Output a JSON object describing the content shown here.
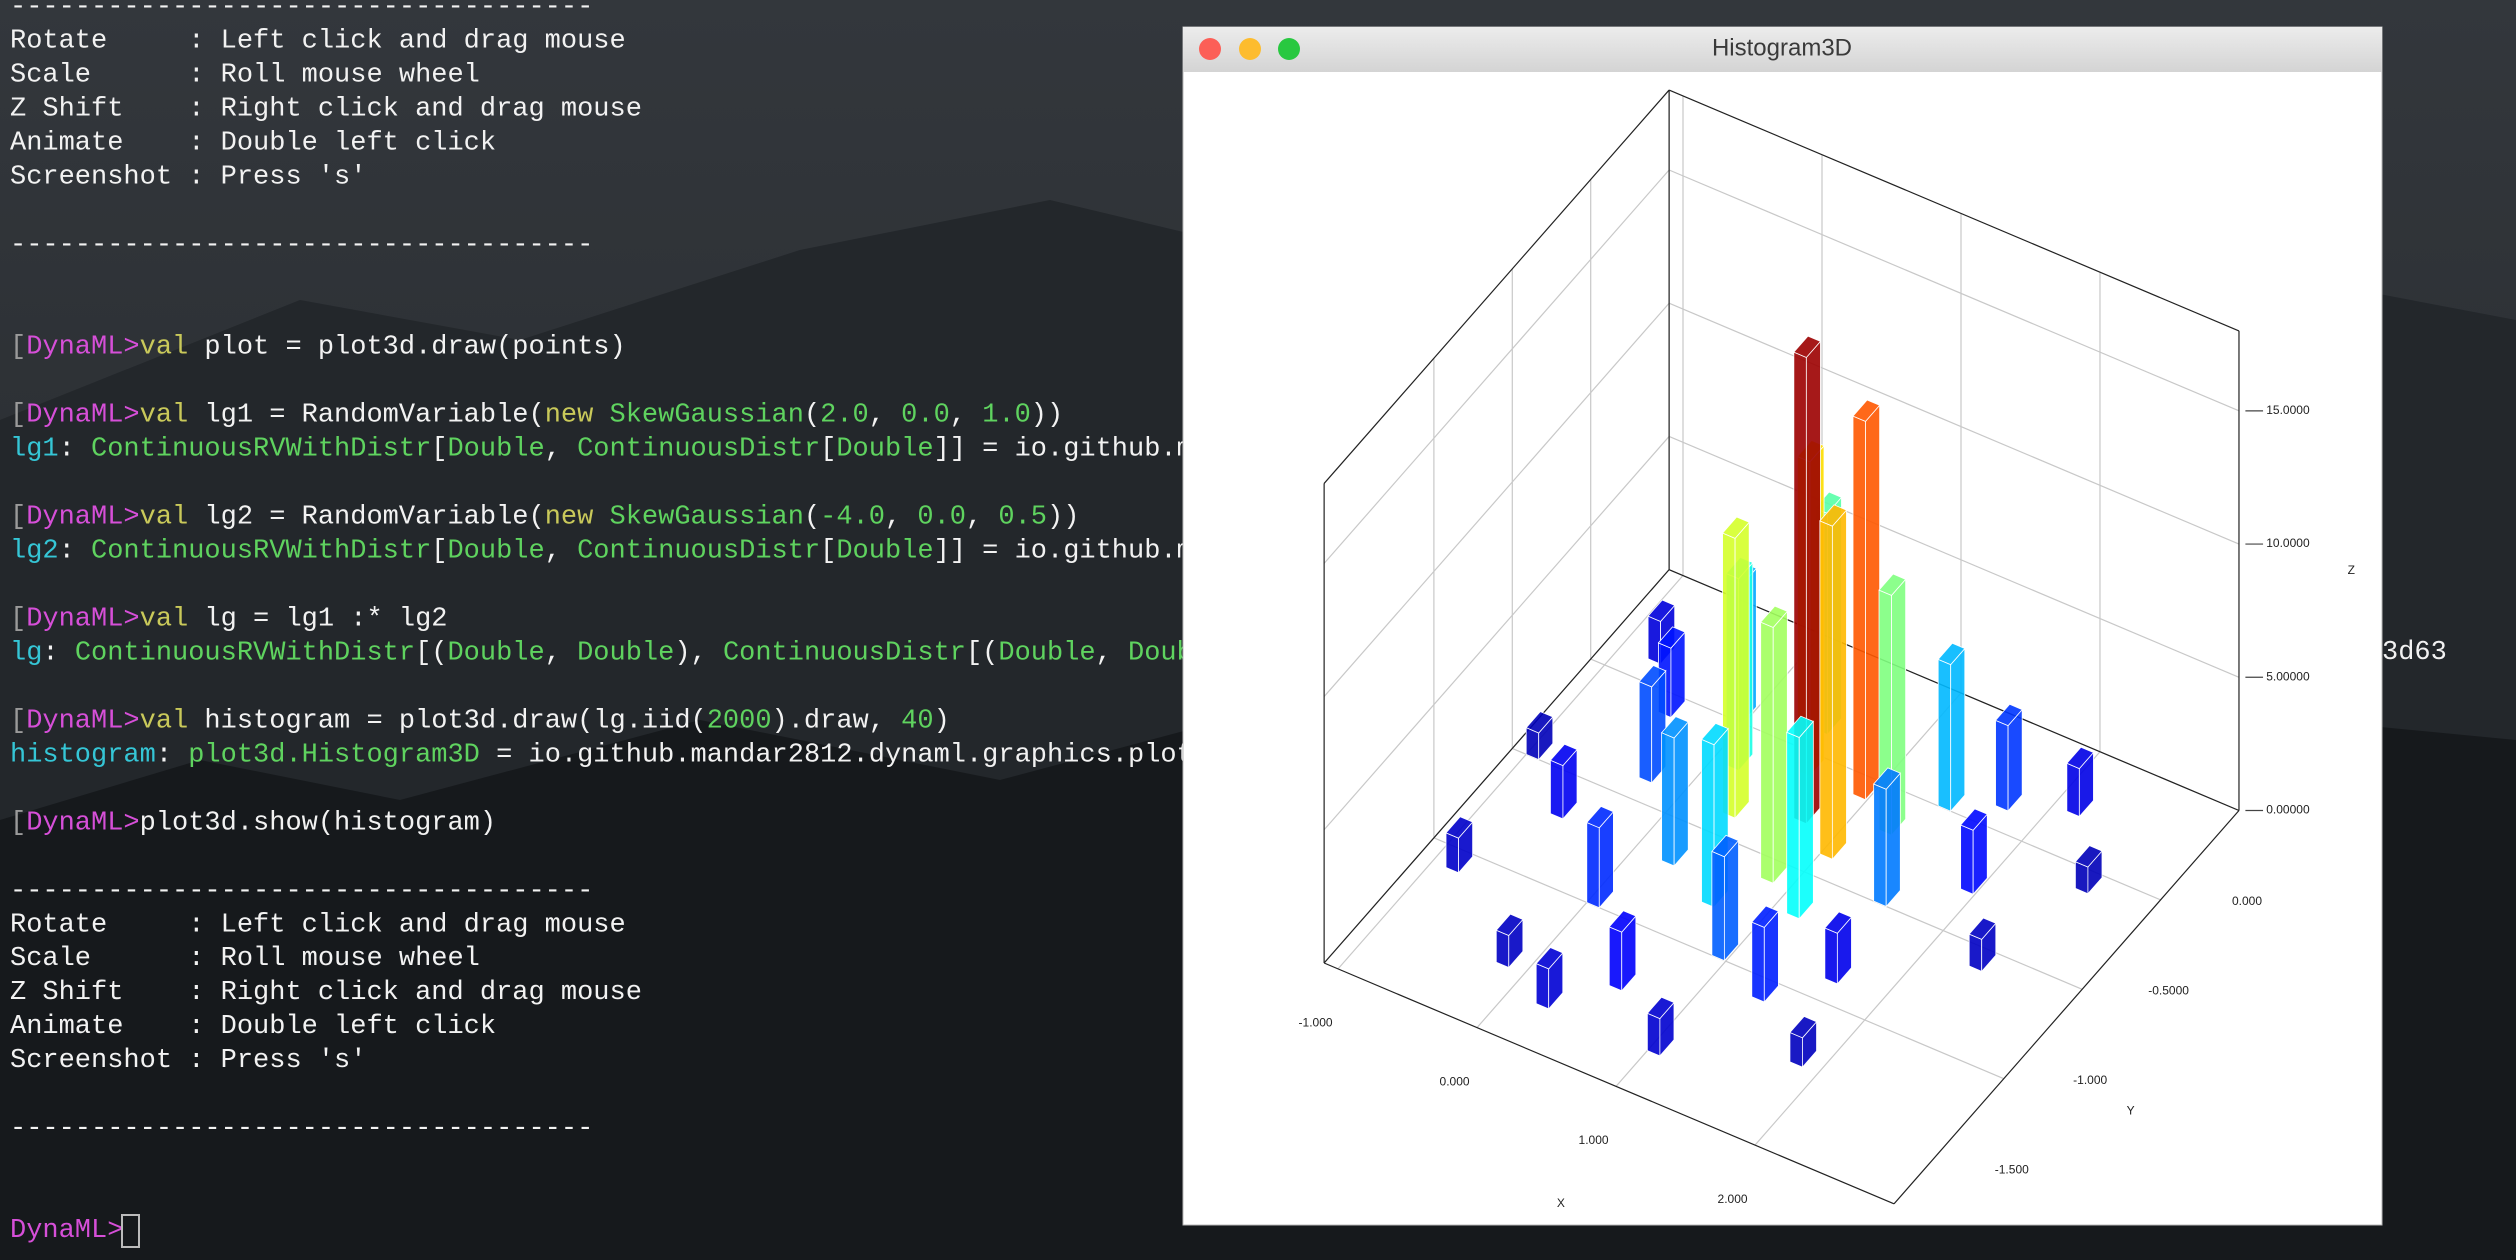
{
  "terminal": {
    "lines": [
      [
        {
          "t": "------------------------------------",
          "c": "plain"
        }
      ],
      [
        {
          "t": "Rotate     : Left click and drag mouse",
          "c": "plain"
        }
      ],
      [
        {
          "t": "Scale      : Roll mouse wheel",
          "c": "plain"
        }
      ],
      [
        {
          "t": "Z Shift    : Right click and drag mouse",
          "c": "plain"
        }
      ],
      [
        {
          "t": "Animate    : Double left click",
          "c": "plain"
        }
      ],
      [
        {
          "t": "Screenshot : Press 's'",
          "c": "plain"
        }
      ],
      [],
      [
        {
          "t": "------------------------------------",
          "c": "plain"
        }
      ],
      [],
      [],
      [
        {
          "t": "[",
          "c": "bracket"
        },
        {
          "t": "DynaML>",
          "c": "prompt"
        },
        {
          "t": "val",
          "c": "kw"
        },
        {
          "t": " plot = plot3d.draw(points)",
          "c": "plain"
        }
      ],
      [],
      [
        {
          "t": "[",
          "c": "bracket"
        },
        {
          "t": "DynaML>",
          "c": "prompt"
        },
        {
          "t": "val",
          "c": "kw"
        },
        {
          "t": " lg1 = RandomVariable(",
          "c": "plain"
        },
        {
          "t": "new",
          "c": "kw"
        },
        {
          "t": " ",
          "c": "plain"
        },
        {
          "t": "SkewGaussian",
          "c": "type"
        },
        {
          "t": "(",
          "c": "plain"
        },
        {
          "t": "2.0",
          "c": "num"
        },
        {
          "t": ", ",
          "c": "plain"
        },
        {
          "t": "0.0",
          "c": "num"
        },
        {
          "t": ", ",
          "c": "plain"
        },
        {
          "t": "1.0",
          "c": "num"
        },
        {
          "t": "))",
          "c": "plain"
        }
      ],
      [
        {
          "t": "lg1",
          "c": "name"
        },
        {
          "t": ": ",
          "c": "plain"
        },
        {
          "t": "ContinuousRVWithDistr",
          "c": "type"
        },
        {
          "t": "[",
          "c": "plain"
        },
        {
          "t": "Double",
          "c": "type"
        },
        {
          "t": ", ",
          "c": "plain"
        },
        {
          "t": "ContinuousDistr",
          "c": "type"
        },
        {
          "t": "[",
          "c": "plain"
        },
        {
          "t": "Double",
          "c": "type"
        },
        {
          "t": "]] = io.github.m",
          "c": "plain"
        }
      ],
      [],
      [
        {
          "t": "[",
          "c": "bracket"
        },
        {
          "t": "DynaML>",
          "c": "prompt"
        },
        {
          "t": "val",
          "c": "kw"
        },
        {
          "t": " lg2 = RandomVariable(",
          "c": "plain"
        },
        {
          "t": "new",
          "c": "kw"
        },
        {
          "t": " ",
          "c": "plain"
        },
        {
          "t": "SkewGaussian",
          "c": "type"
        },
        {
          "t": "(",
          "c": "plain"
        },
        {
          "t": "-4.0",
          "c": "num"
        },
        {
          "t": ", ",
          "c": "plain"
        },
        {
          "t": "0.0",
          "c": "num"
        },
        {
          "t": ", ",
          "c": "plain"
        },
        {
          "t": "0.5",
          "c": "num"
        },
        {
          "t": "))",
          "c": "plain"
        }
      ],
      [
        {
          "t": "lg2",
          "c": "name"
        },
        {
          "t": ": ",
          "c": "plain"
        },
        {
          "t": "ContinuousRVWithDistr",
          "c": "type"
        },
        {
          "t": "[",
          "c": "plain"
        },
        {
          "t": "Double",
          "c": "type"
        },
        {
          "t": ", ",
          "c": "plain"
        },
        {
          "t": "ContinuousDistr",
          "c": "type"
        },
        {
          "t": "[",
          "c": "plain"
        },
        {
          "t": "Double",
          "c": "type"
        },
        {
          "t": "]] = io.github.m",
          "c": "plain"
        }
      ],
      [],
      [
        {
          "t": "[",
          "c": "bracket"
        },
        {
          "t": "DynaML>",
          "c": "prompt"
        },
        {
          "t": "val",
          "c": "kw"
        },
        {
          "t": " lg = lg1 :* lg2",
          "c": "plain"
        }
      ],
      [
        {
          "t": "lg",
          "c": "name"
        },
        {
          "t": ": ",
          "c": "plain"
        },
        {
          "t": "ContinuousRVWithDistr",
          "c": "type"
        },
        {
          "t": "[(",
          "c": "plain"
        },
        {
          "t": "Double",
          "c": "type"
        },
        {
          "t": ", ",
          "c": "plain"
        },
        {
          "t": "Double",
          "c": "type"
        },
        {
          "t": "), ",
          "c": "plain"
        },
        {
          "t": "ContinuousDistr",
          "c": "type"
        },
        {
          "t": "[(",
          "c": "plain"
        },
        {
          "t": "Double",
          "c": "type"
        },
        {
          "t": ", ",
          "c": "plain"
        },
        {
          "t": "Doub",
          "c": "type"
        }
      ],
      [],
      [
        {
          "t": "[",
          "c": "bracket"
        },
        {
          "t": "DynaML>",
          "c": "prompt"
        },
        {
          "t": "val",
          "c": "kw"
        },
        {
          "t": " histogram = plot3d.draw(lg.iid(",
          "c": "plain"
        },
        {
          "t": "2000",
          "c": "num"
        },
        {
          "t": ").draw, ",
          "c": "plain"
        },
        {
          "t": "40",
          "c": "num"
        },
        {
          "t": ")",
          "c": "plain"
        }
      ],
      [
        {
          "t": "histogram",
          "c": "name"
        },
        {
          "t": ": ",
          "c": "plain"
        },
        {
          "t": "plot3d.Histogram3D",
          "c": "type"
        },
        {
          "t": " = io.github.mandar2812.dynaml.graphics.plot",
          "c": "plain"
        }
      ],
      [],
      [
        {
          "t": "[",
          "c": "bracket"
        },
        {
          "t": "DynaML>",
          "c": "prompt"
        },
        {
          "t": "plot3d.show(histogram)",
          "c": "plain"
        }
      ],
      [],
      [
        {
          "t": "------------------------------------",
          "c": "plain"
        }
      ],
      [
        {
          "t": "Rotate     : Left click and drag mouse",
          "c": "plain"
        }
      ],
      [
        {
          "t": "Scale      : Roll mouse wheel",
          "c": "plain"
        }
      ],
      [
        {
          "t": "Z Shift    : Right click and drag mouse",
          "c": "plain"
        }
      ],
      [
        {
          "t": "Animate    : Double left click",
          "c": "plain"
        }
      ],
      [
        {
          "t": "Screenshot : Press 's'",
          "c": "plain"
        }
      ],
      [],
      [
        {
          "t": "------------------------------------",
          "c": "plain"
        }
      ],
      [],
      [],
      [
        {
          "t": "DynaML>",
          "c": "prompt"
        }
      ]
    ],
    "occluded_tail": "3d63"
  },
  "window": {
    "title": "Histogram3D",
    "chart": {
      "type": "bar3d",
      "xlabel": "X",
      "ylabel": "Y",
      "zlabel": "Z",
      "xlim": [
        -1.1,
        3.0
      ],
      "ylim": [
        -2.2,
        0
      ],
      "zlim": [
        0,
        18
      ],
      "xticks": [
        {
          "value": -1,
          "label": "-1.000"
        },
        {
          "value": 0,
          "label": "0.000"
        },
        {
          "value": 1,
          "label": "1.000"
        },
        {
          "value": 2,
          "label": "2.000"
        }
      ],
      "yticks": [
        {
          "value": 0,
          "label": "0.000"
        },
        {
          "value": -0.5,
          "label": "-0.5000"
        },
        {
          "value": -1,
          "label": "-1.000"
        },
        {
          "value": -1.5,
          "label": "-1.500"
        }
      ],
      "zticks": [
        {
          "value": 0,
          "label": "0.00000"
        },
        {
          "value": 5,
          "label": "5.00000"
        },
        {
          "value": 10,
          "label": "10.0000"
        },
        {
          "value": 15,
          "label": "15.0000"
        }
      ],
      "grid": true,
      "bars": {
        "x": [
          0.7,
          0.9,
          1.0,
          0.5,
          0.3,
          0.8,
          1.2,
          0.4,
          0.1,
          1.1,
          0.6,
          1.4,
          -0.1,
          0.2,
          1.5,
          0.9,
          -0.3,
          1.7,
          0.0,
          1.3,
          -0.5,
          1.9,
          0.5,
          -0.6,
          1.6,
          2.1,
          -0.8,
          0.2,
          1.0,
          -0.9,
          2.3,
          -0.2,
          1.8,
          2.5,
          -1.0
        ],
        "y": [
          -0.8,
          -0.6,
          -0.9,
          -0.6,
          -0.9,
          -1.1,
          -0.7,
          -0.4,
          -0.7,
          -1.2,
          -1.3,
          -0.5,
          -0.5,
          -1.2,
          -1.0,
          -1.5,
          -0.9,
          -0.4,
          -1.5,
          -1.6,
          -0.6,
          -0.8,
          -1.8,
          -1.2,
          -1.4,
          -0.3,
          -0.4,
          -2.0,
          -2.0,
          -1.6,
          -1.1,
          -1.9,
          -1.8,
          -0.6,
          -1.0
        ],
        "z": [
          17.5,
          14.2,
          12.5,
          11.8,
          10.5,
          9.6,
          9.0,
          8.3,
          7.2,
          6.8,
          6.1,
          5.5,
          5.2,
          4.8,
          4.4,
          3.9,
          3.6,
          3.2,
          3.0,
          2.8,
          2.6,
          2.4,
          2.2,
          2.0,
          1.9,
          1.8,
          1.6,
          1.5,
          1.4,
          1.3,
          1.2,
          1.2,
          1.1,
          1.0,
          1.0
        ]
      }
    }
  }
}
